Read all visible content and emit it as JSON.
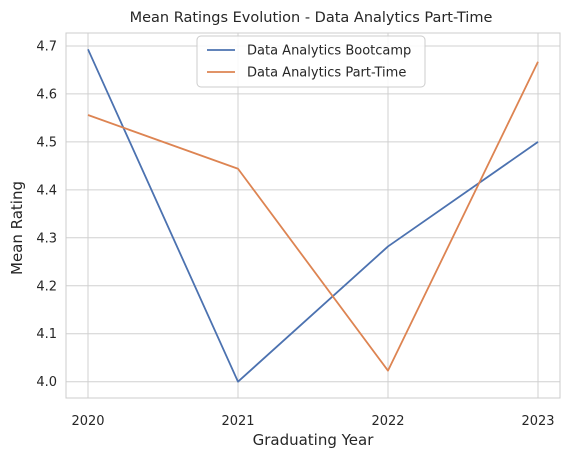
{
  "chart_data": {
    "type": "line",
    "title": "Mean Ratings Evolution - Data Analytics Part-Time",
    "xlabel": "Graduating Year",
    "ylabel": "Mean Rating",
    "x": [
      "2020",
      "2021",
      "2022",
      "2023"
    ],
    "series": [
      {
        "name": "Data Analytics Bootcamp",
        "color": "#4c72b0",
        "values": [
          4.693,
          4.0,
          4.282,
          4.5
        ]
      },
      {
        "name": "Data Analytics Part-Time",
        "color": "#dd8452",
        "values": [
          4.556,
          4.444,
          4.023,
          4.667
        ]
      }
    ],
    "ylim": [
      3.966,
      4.727
    ],
    "yticks": [
      "4.0",
      "4.1",
      "4.2",
      "4.3",
      "4.4",
      "4.5",
      "4.6",
      "4.7"
    ],
    "grid": true,
    "legend_position": "top-center"
  }
}
